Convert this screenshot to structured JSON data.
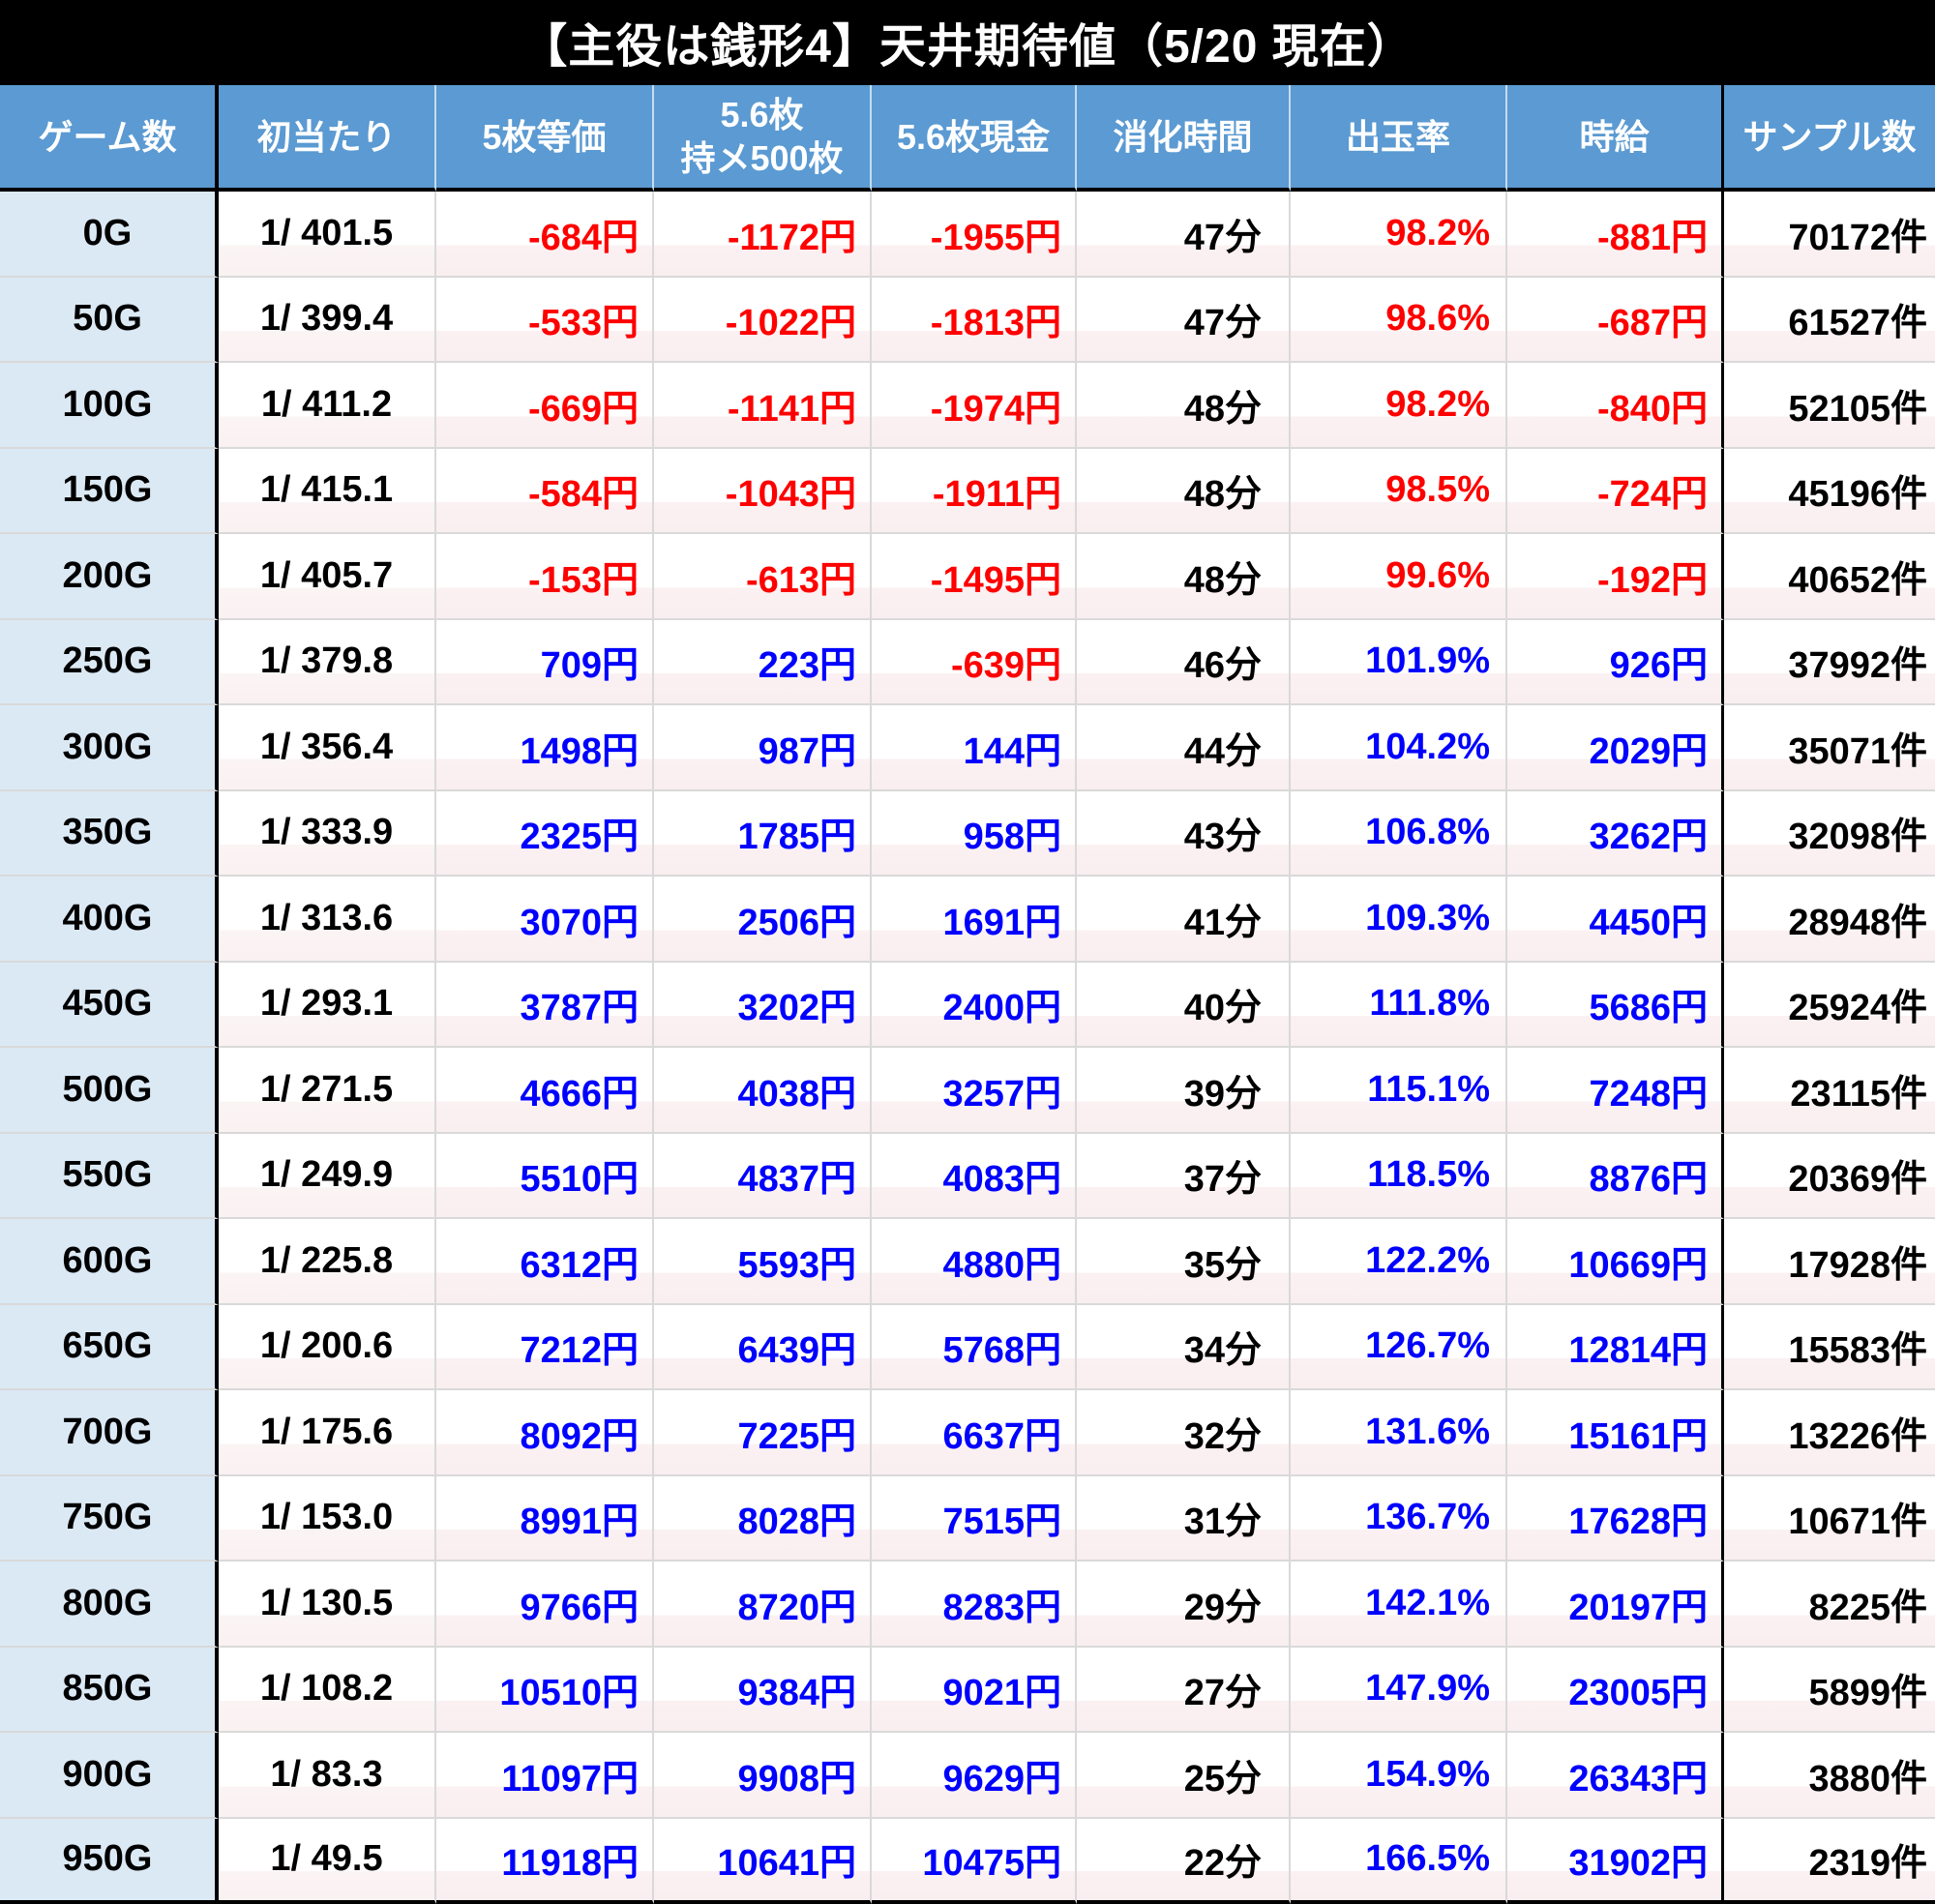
{
  "title": "【主役は銭形4】天井期待値（5/20 現在）",
  "table": {
    "headers": [
      {
        "line1": "ゲーム数"
      },
      {
        "line1": "初当たり"
      },
      {
        "line1": "5枚等価"
      },
      {
        "line1": "5.6枚",
        "line2": "持メ500枚"
      },
      {
        "line1": "5.6枚現金"
      },
      {
        "line1": "消化時間"
      },
      {
        "line1": "出玉率"
      },
      {
        "line1": "時給"
      },
      {
        "line1": "サンプル数"
      }
    ],
    "column_keys": [
      "game-count",
      "first-hit",
      "equal-5mai",
      "hold-500mai",
      "cash-5-6mai",
      "play-time",
      "payout-rate",
      "hourly-wage",
      "sample-count"
    ],
    "rows": [
      [
        "0G",
        "1/ 401.5",
        "-684円",
        "-1172円",
        "-1955円",
        "47分",
        "98.2%",
        "-881円",
        "70172件"
      ],
      [
        "50G",
        "1/ 399.4",
        "-533円",
        "-1022円",
        "-1813円",
        "47分",
        "98.6%",
        "-687円",
        "61527件"
      ],
      [
        "100G",
        "1/ 411.2",
        "-669円",
        "-1141円",
        "-1974円",
        "48分",
        "98.2%",
        "-840円",
        "52105件"
      ],
      [
        "150G",
        "1/ 415.1",
        "-584円",
        "-1043円",
        "-1911円",
        "48分",
        "98.5%",
        "-724円",
        "45196件"
      ],
      [
        "200G",
        "1/ 405.7",
        "-153円",
        "-613円",
        "-1495円",
        "48分",
        "99.6%",
        "-192円",
        "40652件"
      ],
      [
        "250G",
        "1/ 379.8",
        "709円",
        "223円",
        "-639円",
        "46分",
        "101.9%",
        "926円",
        "37992件"
      ],
      [
        "300G",
        "1/ 356.4",
        "1498円",
        "987円",
        "144円",
        "44分",
        "104.2%",
        "2029円",
        "35071件"
      ],
      [
        "350G",
        "1/ 333.9",
        "2325円",
        "1785円",
        "958円",
        "43分",
        "106.8%",
        "3262円",
        "32098件"
      ],
      [
        "400G",
        "1/ 313.6",
        "3070円",
        "2506円",
        "1691円",
        "41分",
        "109.3%",
        "4450円",
        "28948件"
      ],
      [
        "450G",
        "1/ 293.1",
        "3787円",
        "3202円",
        "2400円",
        "40分",
        "111.8%",
        "5686円",
        "25924件"
      ],
      [
        "500G",
        "1/ 271.5",
        "4666円",
        "4038円",
        "3257円",
        "39分",
        "115.1%",
        "7248円",
        "23115件"
      ],
      [
        "550G",
        "1/ 249.9",
        "5510円",
        "4837円",
        "4083円",
        "37分",
        "118.5%",
        "8876円",
        "20369件"
      ],
      [
        "600G",
        "1/ 225.8",
        "6312円",
        "5593円",
        "4880円",
        "35分",
        "122.2%",
        "10669円",
        "17928件"
      ],
      [
        "650G",
        "1/ 200.6",
        "7212円",
        "6439円",
        "5768円",
        "34分",
        "126.7%",
        "12814円",
        "15583件"
      ],
      [
        "700G",
        "1/ 175.6",
        "8092円",
        "7225円",
        "6637円",
        "32分",
        "131.6%",
        "15161円",
        "13226件"
      ],
      [
        "750G",
        "1/ 153.0",
        "8991円",
        "8028円",
        "7515円",
        "31分",
        "136.7%",
        "17628円",
        "10671件"
      ],
      [
        "800G",
        "1/ 130.5",
        "9766円",
        "8720円",
        "8283円",
        "29分",
        "142.1%",
        "20197円",
        "8225件"
      ],
      [
        "850G",
        "1/ 108.2",
        "10510円",
        "9384円",
        "9021円",
        "27分",
        "147.9%",
        "23005円",
        "5899件"
      ],
      [
        "900G",
        "1/ 83.3",
        "11097円",
        "9908円",
        "9629円",
        "25分",
        "154.9%",
        "26343円",
        "3880件"
      ],
      [
        "950G",
        "1/ 49.5",
        "11918円",
        "10641円",
        "10475円",
        "22分",
        "166.5%",
        "31902円",
        "2319件"
      ]
    ],
    "colors": {
      "header_bg": "#5b9ad2",
      "first_col_bg": "#dbe9f5",
      "negative": "#ff0000",
      "positive": "#0000ff",
      "grid": "#d9d9d9",
      "title_bg": "#000000"
    }
  }
}
